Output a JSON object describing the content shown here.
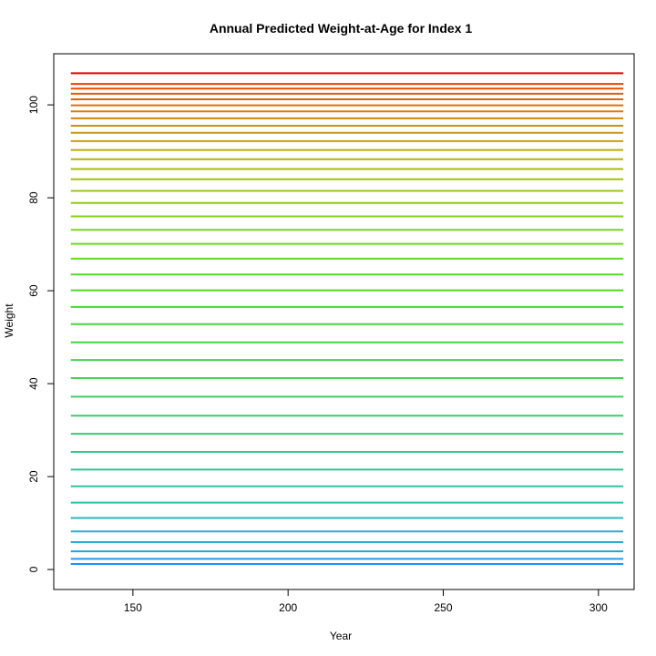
{
  "chart_data": {
    "type": "line",
    "title": "Annual Predicted Weight-at-Age for Index 1",
    "xlabel": "Year",
    "ylabel": "Weight",
    "xlim": [
      124.5,
      311.5
    ],
    "ylim": [
      -4.3,
      111
    ],
    "x_range": [
      130,
      308
    ],
    "xticks": [
      150,
      200,
      250,
      300
    ],
    "yticks": [
      0,
      20,
      40,
      60,
      80,
      100
    ],
    "grid": false,
    "legend": "none",
    "series_levels": [
      1.2,
      2.3,
      3.9,
      5.9,
      8.2,
      11.1,
      14.4,
      17.9,
      21.5,
      25.3,
      29.2,
      33.1,
      37.2,
      41.2,
      45.1,
      48.9,
      52.8,
      56.5,
      60.1,
      63.5,
      66.9,
      70.1,
      73.1,
      76.0,
      78.9,
      81.5,
      84.0,
      86.2,
      88.3,
      90.3,
      92.2,
      94.0,
      95.5,
      97.1,
      98.6,
      99.9,
      101.2,
      102.4,
      103.5,
      104.5,
      106.8
    ],
    "series_colors": [
      "#1f8fff",
      "#209aee",
      "#22a3e2",
      "#25abd4",
      "#28b2c8",
      "#2ab8bc",
      "#2fbcae",
      "#33c0a1",
      "#36c394",
      "#3ac687",
      "#3cc87a",
      "#3fcb6e",
      "#41cd63",
      "#42d058",
      "#44d24d",
      "#45d444",
      "#46d63b",
      "#47d833",
      "#4cdb2a",
      "#55dc22",
      "#60dc1c",
      "#6cdb18",
      "#78d816",
      "#84d214",
      "#8fcd12",
      "#99c710",
      "#a2c00f",
      "#abba0e",
      "#b3b20d",
      "#bbaa0c",
      "#c2a10b",
      "#c9980a",
      "#cf8e09",
      "#d58408",
      "#da7a07",
      "#df6f06",
      "#e36405",
      "#e75804",
      "#eb4b03",
      "#ee3e02",
      "#e60000"
    ]
  }
}
